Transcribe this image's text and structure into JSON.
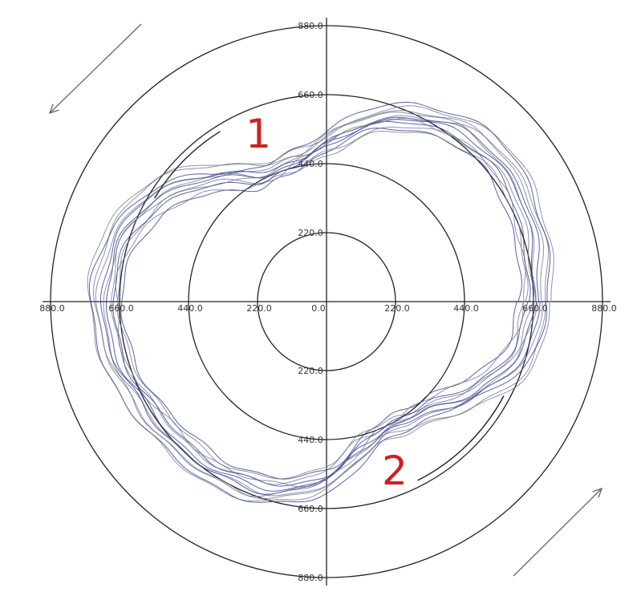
{
  "chart_data": {
    "type": "line",
    "coordinate_system": "polar",
    "title": "",
    "xlabel": "",
    "ylabel": "",
    "rlim": [
      0,
      880
    ],
    "grid": true,
    "radial_tick_labels": [
      "0.0",
      "220.0",
      "440.0",
      "660.0",
      "880.0"
    ],
    "axis_tick_labels": {
      "top": [
        "880.0",
        "660.0",
        "440.0",
        "220.0"
      ],
      "bottom": [
        "220.0",
        "440.0",
        "660.0",
        "880.0"
      ],
      "left": [
        "880.0",
        "660.0",
        "440.0",
        "220.0"
      ],
      "center": "0.0",
      "right": [
        "220.0",
        "440.0",
        "660.0",
        "880.0"
      ]
    },
    "annotations": [
      {
        "text": "1",
        "color": "#cc2222",
        "angle_deg": 112
      },
      {
        "text": "2",
        "color": "#cc2222",
        "angle_deg": 292
      }
    ],
    "rotation_arrows": [
      "top-left",
      "bottom-right"
    ],
    "line_colors": [
      "#1f2f8f",
      "#6a7088"
    ],
    "profile": {
      "description_unit": "radius per angle (degrees, counter-clockwise from +x)",
      "angles_deg": [
        0,
        15,
        30,
        45,
        60,
        75,
        90,
        105,
        120,
        135,
        150,
        165,
        180,
        195,
        210,
        225,
        240,
        255,
        270,
        285,
        300,
        315,
        330,
        345
      ],
      "radii": [
        660,
        680,
        700,
        700,
        660,
        590,
        500,
        450,
        460,
        550,
        640,
        690,
        700,
        690,
        660,
        650,
        640,
        620,
        560,
        470,
        450,
        480,
        560,
        640
      ]
    },
    "series": [
      {
        "scale": 0.93,
        "phase_deg": 3,
        "color": "#1f2f8f"
      },
      {
        "scale": 0.95,
        "phase_deg": -2,
        "color": "#6a7088"
      },
      {
        "scale": 0.97,
        "phase_deg": 2,
        "color": "#1f2f8f"
      },
      {
        "scale": 0.98,
        "phase_deg": -3,
        "color": "#6a7088"
      },
      {
        "scale": 1.0,
        "phase_deg": 0,
        "color": "#1f2f8f"
      },
      {
        "scale": 1.01,
        "phase_deg": 4,
        "color": "#6a7088"
      },
      {
        "scale": 1.02,
        "phase_deg": -1,
        "color": "#1f2f8f"
      },
      {
        "scale": 1.04,
        "phase_deg": 1,
        "color": "#6a7088"
      },
      {
        "scale": 1.05,
        "phase_deg": -4,
        "color": "#6a7088"
      },
      {
        "scale": 1.07,
        "phase_deg": 2,
        "color": "#1f2f8f"
      },
      {
        "scale": 1.08,
        "phase_deg": -2,
        "color": "#6a7088"
      },
      {
        "scale": 0.96,
        "phase_deg": 5,
        "color": "#6a7088"
      }
    ]
  }
}
